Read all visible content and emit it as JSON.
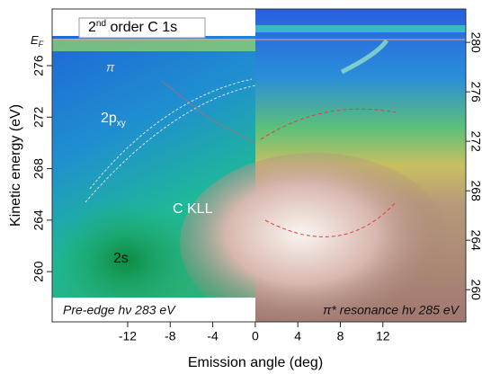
{
  "chart_data": {
    "type": "image",
    "xlabel": "Emission angle (deg)",
    "ylabel": "Kinetic energy (eV)",
    "xlim": [
      -19.1,
      19.8
    ],
    "xticks": [
      -12,
      -8,
      -4,
      0,
      4,
      8,
      12
    ],
    "ylim": [
      256.1,
      280.4
    ],
    "yticks": [
      260,
      264,
      268,
      272,
      276
    ],
    "y2lim": [
      257.4,
      282.7
    ],
    "y2ticks": [
      260,
      264,
      268,
      272,
      276,
      280
    ],
    "annotations": {
      "second_order": {
        "text": "2",
        "sup": "nd",
        "rest": " order C 1s"
      },
      "fermi": {
        "text": "E",
        "sub": "F"
      },
      "pi": "π",
      "p_xy": {
        "text": "2p",
        "sub": "xy"
      },
      "ckll": "C KLL",
      "two_s": "2s"
    },
    "panels": [
      "Pre-edge hν 283 eV",
      "π* resonance hν 285 eV"
    ]
  }
}
